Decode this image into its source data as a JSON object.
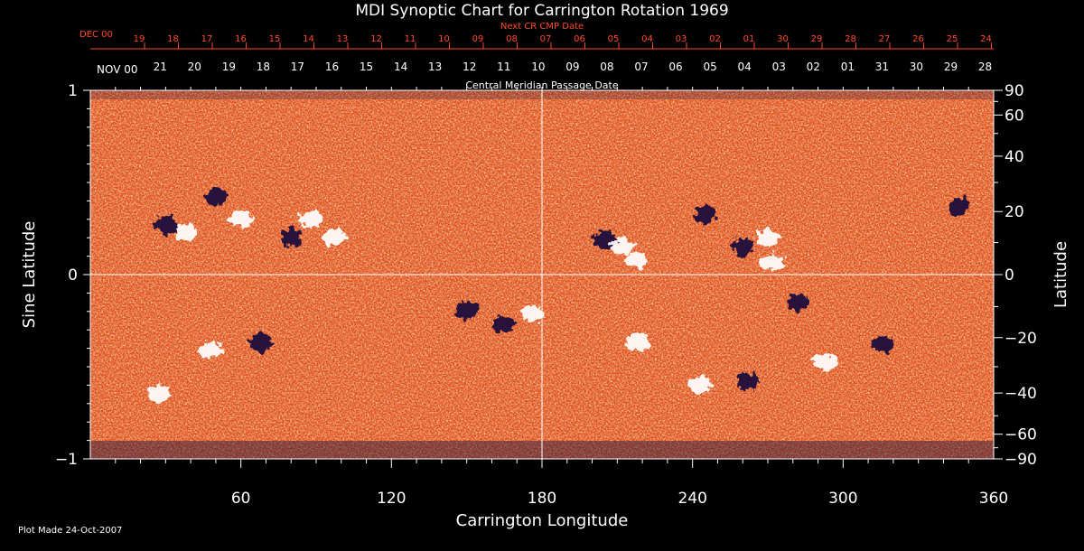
{
  "chart_data": {
    "type": "heatmap",
    "title": "MDI Synoptic Chart for Carrington Rotation 1969",
    "xlabel": "Carrington Longitude",
    "ylabel_left": "Sine Latitude",
    "ylabel_right": "Latitude",
    "xlim": [
      0,
      360
    ],
    "ylim": [
      -1,
      1
    ],
    "x_ticks": [
      60,
      120,
      180,
      240,
      300,
      360
    ],
    "y_ticks_left": [
      {
        "v": 1,
        "t": "1"
      },
      {
        "v": 0,
        "t": "0"
      },
      {
        "v": -1,
        "t": "−1"
      }
    ],
    "y_ticks_right": [
      {
        "deg": 90,
        "t": "90"
      },
      {
        "deg": 60,
        "t": "60"
      },
      {
        "deg": 40,
        "t": "40"
      },
      {
        "deg": 20,
        "t": "20"
      },
      {
        "deg": 0,
        "t": "0"
      },
      {
        "deg": -20,
        "t": "−20"
      },
      {
        "deg": -40,
        "t": "−40"
      },
      {
        "deg": -60,
        "t": "−60"
      },
      {
        "deg": -90,
        "t": "−90"
      }
    ],
    "top_axis": {
      "label": "Central Meridian Passage Date",
      "month_label": "NOV 00",
      "dates": [
        "21",
        "20",
        "19",
        "18",
        "17",
        "16",
        "15",
        "14",
        "13",
        "12",
        "11",
        "10",
        "09",
        "08",
        "07",
        "06",
        "05",
        "04",
        "03",
        "02",
        "01",
        "31",
        "30",
        "29",
        "28"
      ],
      "date_lons": [
        27.8,
        41.5,
        55.2,
        68.9,
        82.6,
        96.3,
        110.0,
        123.7,
        137.4,
        151.1,
        164.8,
        178.5,
        192.2,
        205.9,
        219.6,
        233.3,
        247.0,
        260.7,
        274.4,
        288.1,
        301.8,
        315.5,
        329.2,
        342.9,
        356.6
      ]
    },
    "next_axis": {
      "label": "Next CR CMP Date",
      "month_label": "DEC 00",
      "dates": [
        "19",
        "18",
        "17",
        "16",
        "15",
        "14",
        "13",
        "12",
        "11",
        "10",
        "09",
        "08",
        "07",
        "06",
        "05",
        "04",
        "03",
        "02",
        "01",
        "30",
        "29",
        "28",
        "27",
        "26",
        "25",
        "24"
      ],
      "date_lons": [
        21.6,
        35.1,
        48.6,
        62.1,
        75.6,
        89.1,
        102.6,
        116.1,
        129.6,
        143.1,
        156.6,
        170.1,
        183.6,
        197.1,
        210.6,
        224.1,
        237.6,
        251.1,
        264.6,
        278.1,
        291.6,
        305.1,
        318.6,
        332.1,
        345.6,
        359.1
      ]
    },
    "regions": [
      {
        "lon": 50,
        "sinlat": 0.42,
        "polarity": "negative"
      },
      {
        "lon": 60,
        "sinlat": 0.3,
        "polarity": "positive"
      },
      {
        "lon": 30,
        "sinlat": 0.27,
        "polarity": "negative"
      },
      {
        "lon": 38,
        "sinlat": 0.23,
        "polarity": "positive"
      },
      {
        "lon": 88,
        "sinlat": 0.3,
        "polarity": "positive"
      },
      {
        "lon": 80,
        "sinlat": 0.2,
        "polarity": "negative"
      },
      {
        "lon": 97,
        "sinlat": 0.2,
        "polarity": "positive"
      },
      {
        "lon": 48,
        "sinlat": -0.41,
        "polarity": "positive"
      },
      {
        "lon": 68,
        "sinlat": -0.37,
        "polarity": "negative"
      },
      {
        "lon": 27,
        "sinlat": -0.65,
        "polarity": "positive"
      },
      {
        "lon": 150,
        "sinlat": -0.19,
        "polarity": "negative"
      },
      {
        "lon": 176,
        "sinlat": -0.21,
        "polarity": "positive"
      },
      {
        "lon": 165,
        "sinlat": -0.27,
        "polarity": "negative"
      },
      {
        "lon": 205,
        "sinlat": 0.19,
        "polarity": "negative"
      },
      {
        "lon": 212,
        "sinlat": 0.15,
        "polarity": "positive"
      },
      {
        "lon": 218,
        "sinlat": 0.08,
        "polarity": "positive"
      },
      {
        "lon": 245,
        "sinlat": 0.32,
        "polarity": "negative"
      },
      {
        "lon": 260,
        "sinlat": 0.15,
        "polarity": "negative"
      },
      {
        "lon": 270,
        "sinlat": 0.2,
        "polarity": "positive"
      },
      {
        "lon": 272,
        "sinlat": 0.07,
        "polarity": "positive"
      },
      {
        "lon": 282,
        "sinlat": -0.15,
        "polarity": "negative"
      },
      {
        "lon": 316,
        "sinlat": -0.38,
        "polarity": "negative"
      },
      {
        "lon": 293,
        "sinlat": -0.47,
        "polarity": "positive"
      },
      {
        "lon": 243,
        "sinlat": -0.6,
        "polarity": "positive"
      },
      {
        "lon": 262,
        "sinlat": -0.58,
        "polarity": "negative"
      },
      {
        "lon": 346,
        "sinlat": 0.37,
        "polarity": "negative"
      },
      {
        "lon": 218,
        "sinlat": -0.37,
        "polarity": "positive"
      }
    ],
    "colors": {
      "background": "#000000",
      "positive": "#ffffff",
      "negative": "#1a0f3c",
      "field": "#e8501a",
      "text": "#ffffff",
      "date_red": "#ff4a2a"
    }
  },
  "footer": {
    "plot_made": "Plot Made 24-Oct-2007"
  }
}
